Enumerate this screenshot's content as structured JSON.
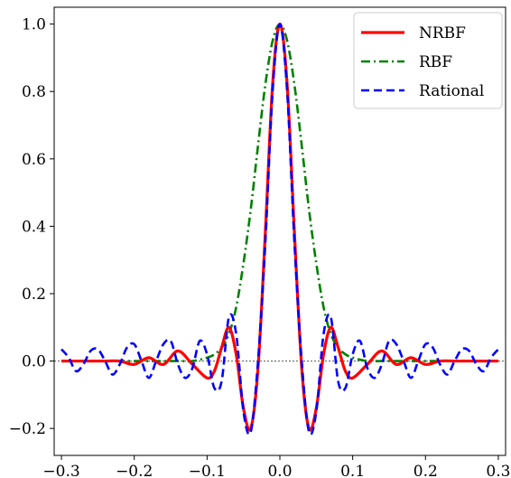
{
  "chart_data": {
    "type": "line",
    "title": "",
    "xlabel": "",
    "ylabel": "",
    "xlim": [
      -0.31,
      0.31
    ],
    "ylim": [
      -0.28,
      1.05
    ],
    "x_ticks": [
      -0.3,
      -0.2,
      -0.1,
      0.0,
      0.1,
      0.2,
      0.3
    ],
    "x_tick_labels": [
      "−0.3",
      "−0.2",
      "−0.1",
      "0.0",
      "0.1",
      "0.2",
      "0.3"
    ],
    "y_ticks": [
      -0.2,
      0.0,
      0.2,
      0.4,
      0.6,
      0.8,
      1.0
    ],
    "y_tick_labels": [
      "−0.2",
      "0.0",
      "0.2",
      "0.4",
      "0.6",
      "0.8",
      "1.0"
    ],
    "grid": false,
    "legend_position": "top-right",
    "zero_reference_line": {
      "y": 0.0,
      "style": "dotted",
      "color": "#555555"
    },
    "series": [
      {
        "name": "NRBF",
        "color": "#ff0000",
        "line_style": "solid",
        "x": [
          -0.3,
          -0.28,
          -0.26,
          -0.24,
          -0.22,
          -0.2,
          -0.18,
          -0.16,
          -0.14,
          -0.12,
          -0.1,
          -0.09,
          -0.08,
          -0.07,
          -0.06,
          -0.05,
          -0.04,
          -0.03,
          -0.02,
          -0.01,
          0.0,
          0.01,
          0.02,
          0.03,
          0.04,
          0.05,
          0.06,
          0.07,
          0.08,
          0.09,
          0.1,
          0.12,
          0.14,
          0.16,
          0.18,
          0.2,
          0.22,
          0.24,
          0.26,
          0.28,
          0.3
        ],
        "y": [
          0.0,
          0.0,
          0.0,
          0.0,
          0.0,
          -0.01,
          0.01,
          -0.01,
          0.03,
          -0.01,
          -0.05,
          -0.03,
          0.04,
          0.1,
          0.02,
          -0.14,
          -0.2,
          -0.02,
          0.38,
          0.82,
          1.0,
          0.82,
          0.38,
          -0.02,
          -0.2,
          -0.14,
          0.02,
          0.1,
          0.04,
          -0.03,
          -0.05,
          -0.01,
          0.03,
          -0.01,
          0.01,
          -0.01,
          0.0,
          0.0,
          0.0,
          0.0,
          0.0
        ]
      },
      {
        "name": "RBF",
        "color": "#008000",
        "line_style": "dashdot",
        "x": [
          -0.3,
          -0.2,
          -0.14,
          -0.12,
          -0.1,
          -0.09,
          -0.08,
          -0.07,
          -0.06,
          -0.05,
          -0.04,
          -0.03,
          -0.02,
          -0.01,
          0.0,
          0.01,
          0.02,
          0.03,
          0.04,
          0.05,
          0.06,
          0.07,
          0.08,
          0.09,
          0.1,
          0.12,
          0.14,
          0.2,
          0.3
        ],
        "y": [
          0.0,
          0.0,
          0.0,
          0.0,
          0.01,
          0.02,
          0.04,
          0.08,
          0.16,
          0.29,
          0.45,
          0.64,
          0.82,
          0.95,
          1.0,
          0.95,
          0.82,
          0.64,
          0.45,
          0.29,
          0.16,
          0.08,
          0.04,
          0.02,
          0.01,
          0.0,
          0.0,
          0.0,
          0.0
        ]
      },
      {
        "name": "Rational",
        "color": "#0000ff",
        "line_style": "dashed",
        "x": [
          -0.3,
          -0.29,
          -0.28,
          -0.27,
          -0.26,
          -0.25,
          -0.24,
          -0.23,
          -0.22,
          -0.21,
          -0.2,
          -0.19,
          -0.18,
          -0.17,
          -0.16,
          -0.15,
          -0.14,
          -0.13,
          -0.12,
          -0.11,
          -0.1,
          -0.09,
          -0.08,
          -0.07,
          -0.06,
          -0.05,
          -0.04,
          -0.03,
          -0.02,
          -0.01,
          0.0,
          0.01,
          0.02,
          0.03,
          0.04,
          0.05,
          0.06,
          0.07,
          0.08,
          0.09,
          0.1,
          0.11,
          0.12,
          0.13,
          0.14,
          0.15,
          0.16,
          0.17,
          0.18,
          0.19,
          0.2,
          0.21,
          0.22,
          0.23,
          0.24,
          0.25,
          0.26,
          0.27,
          0.28,
          0.29,
          0.3
        ],
        "y": [
          0.035,
          0.01,
          -0.03,
          -0.01,
          0.03,
          0.035,
          0.0,
          -0.04,
          -0.01,
          0.04,
          0.05,
          0.0,
          -0.05,
          0.0,
          0.05,
          0.06,
          -0.01,
          -0.05,
          -0.02,
          0.06,
          0.02,
          -0.08,
          -0.06,
          0.13,
          0.08,
          -0.15,
          -0.21,
          0.0,
          0.35,
          0.8,
          1.0,
          0.8,
          0.35,
          0.0,
          -0.21,
          -0.15,
          0.08,
          0.13,
          -0.06,
          -0.08,
          0.02,
          0.06,
          -0.02,
          -0.05,
          -0.01,
          0.06,
          0.05,
          0.0,
          -0.05,
          0.0,
          0.05,
          0.04,
          -0.01,
          -0.04,
          0.0,
          0.035,
          0.03,
          -0.01,
          -0.03,
          0.01,
          0.035
        ]
      }
    ]
  }
}
